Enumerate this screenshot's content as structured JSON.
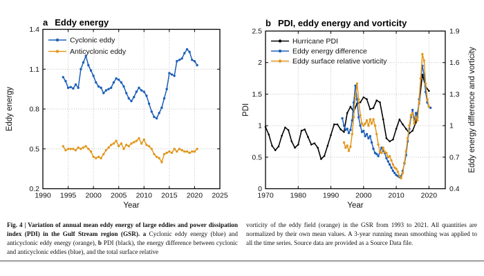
{
  "figure": {
    "caption": {
      "columns": [
        {
          "segments": [
            {
              "bold": true,
              "text": "Fig. 4 | Variation of annual mean eddy energy of large eddies and power dissipation index (PDI) in the Gulf Stream region (GSR). "
            },
            {
              "bold": true,
              "text": "a"
            },
            {
              "bold": false,
              "text": " Cyclonic eddy energy (blue) and anticyclonic eddy energy (orange), "
            },
            {
              "bold": true,
              "text": "b"
            },
            {
              "bold": false,
              "text": " PDI (black), the energy difference between cyclonic and anticyclonic eddies (blue), and the total surface relative"
            }
          ]
        },
        {
          "segments": [
            {
              "bold": false,
              "text": "vorticity of the eddy field (orange) in the GSR from 1993 to 2021. All quantities are normalized by their own mean values. A 3-year running mean smoothing was applied to all the time series. Source data are provided as a Source Data file."
            }
          ]
        }
      ]
    }
  },
  "chart_data": [
    {
      "panel": "a",
      "type": "line",
      "title": "Eddy energy",
      "xlabel": "Year",
      "ylabel": "Eddy energy",
      "xlim": [
        1990,
        2025
      ],
      "ylim": [
        0.2,
        1.4
      ],
      "xticks": [
        1990,
        1995,
        2000,
        2005,
        2010,
        2015,
        2020,
        2025
      ],
      "yticks": [
        0.2,
        0.5,
        0.8,
        1.1,
        1.4
      ],
      "grid": true,
      "legend_position": "top-left",
      "series": [
        {
          "name": "Cyclonic eddy",
          "color": "#1a5eb8",
          "x_start": 1994,
          "x_step": 0.5,
          "values": [
            1.04,
            1.01,
            0.96,
            0.965,
            0.955,
            0.985,
            0.96,
            1.1,
            1.15,
            1.2,
            1.13,
            1.09,
            1.05,
            1.0,
            0.97,
            0.96,
            0.92,
            0.94,
            0.95,
            0.96,
            1.0,
            1.03,
            1.02,
            1.0,
            0.97,
            0.92,
            0.88,
            0.86,
            0.89,
            0.93,
            0.96,
            0.94,
            0.93,
            0.9,
            0.84,
            0.78,
            0.74,
            0.73,
            0.77,
            0.81,
            0.88,
            0.95,
            1.07,
            1.06,
            1.05,
            1.16,
            1.17,
            1.18,
            1.22,
            1.25,
            1.23,
            1.17,
            1.16,
            1.13
          ]
        },
        {
          "name": "Anticyclonic eddy",
          "color": "#e2971d",
          "x_start": 1994,
          "x_step": 0.5,
          "values": [
            0.52,
            0.49,
            0.5,
            0.5,
            0.5,
            0.49,
            0.51,
            0.5,
            0.51,
            0.52,
            0.5,
            0.48,
            0.44,
            0.43,
            0.44,
            0.43,
            0.46,
            0.49,
            0.51,
            0.53,
            0.54,
            0.56,
            0.52,
            0.54,
            0.5,
            0.53,
            0.52,
            0.54,
            0.55,
            0.56,
            0.58,
            0.54,
            0.57,
            0.53,
            0.52,
            0.5,
            0.46,
            0.44,
            0.43,
            0.4,
            0.46,
            0.47,
            0.48,
            0.47,
            0.5,
            0.48,
            0.5,
            0.49,
            0.48,
            0.48,
            0.47,
            0.48,
            0.48,
            0.5
          ]
        }
      ]
    },
    {
      "panel": "b",
      "type": "line",
      "title": "PDI, eddy energy and vorticity",
      "xlabel": "Year",
      "ylabel_left": "PDI",
      "ylabel_right": "Eddy energy difference and vorticity",
      "xlim": [
        1970,
        2025
      ],
      "ylim_left": [
        0,
        2.5
      ],
      "ylim_right": [
        0.4,
        1.9
      ],
      "xticks": [
        1970,
        1980,
        1990,
        2000,
        2010,
        2020
      ],
      "yticks_left": [
        0,
        0.5,
        1,
        1.5,
        2,
        2.5
      ],
      "yticks_right": [
        0.4,
        0.7,
        1,
        1.3,
        1.6,
        1.9
      ],
      "grid": true,
      "legend_position": "top-left",
      "series": [
        {
          "name": "Hurricane PDI",
          "color": "#000000",
          "axis": "left",
          "x_start": 1970,
          "x_step": 1,
          "values": [
            0.98,
            0.86,
            0.68,
            0.61,
            0.67,
            0.84,
            0.97,
            0.93,
            0.75,
            0.65,
            0.7,
            0.92,
            0.94,
            0.82,
            0.7,
            0.72,
            0.65,
            0.47,
            0.52,
            0.68,
            0.85,
            1.02,
            1.02,
            0.94,
            0.9,
            1.2,
            1.3,
            1.22,
            1.35,
            1.37,
            1.45,
            1.42,
            1.26,
            1.28,
            1.4,
            1.37,
            1.1,
            0.8,
            0.75,
            0.78,
            0.95,
            1.1,
            1.02,
            0.95,
            0.88,
            0.92,
            1.05,
            1.35,
            1.81,
            1.62,
            1.55
          ]
        },
        {
          "name": "Eddy energy difference",
          "color": "#1a5eb8",
          "axis": "right",
          "x_start": 1993.5,
          "x_step": 0.5,
          "values": [
            1.07,
            1.0,
            0.96,
            0.97,
            0.93,
            0.96,
            1.05,
            1.22,
            1.38,
            1.25,
            1.08,
            1.0,
            0.94,
            0.95,
            0.9,
            0.92,
            0.88,
            0.9,
            0.84,
            0.78,
            0.74,
            0.73,
            0.71,
            0.75,
            0.79,
            0.76,
            0.74,
            0.69,
            0.66,
            0.63,
            0.6,
            0.57,
            0.55,
            0.53,
            0.52,
            0.51,
            0.52,
            0.57,
            0.64,
            0.72,
            0.85,
            0.97,
            1.08,
            1.15,
            1.05,
            1.12,
            1.08,
            1.25,
            1.45,
            1.57,
            1.48,
            1.32,
            1.22,
            1.18,
            1.17
          ]
        },
        {
          "name": "Eddy surface relative vorticity",
          "color": "#e2971d",
          "axis": "right",
          "x_start": 1994,
          "x_step": 0.5,
          "values": [
            0.84,
            0.79,
            0.81,
            0.76,
            0.8,
            0.92,
            1.08,
            1.28,
            1.4,
            1.25,
            1.1,
            1.02,
            1.0,
            1.02,
            1.05,
            1.0,
            1.06,
            1.02,
            1.06,
            1.0,
            0.92,
            0.82,
            0.75,
            0.74,
            0.79,
            0.75,
            0.74,
            0.7,
            0.71,
            0.67,
            0.63,
            0.6,
            0.59,
            0.56,
            0.52,
            0.5,
            0.55,
            0.65,
            0.76,
            0.88,
            1.0,
            1.1,
            1.12,
            1.02,
            1.08,
            1.05,
            1.22,
            1.45,
            1.68,
            1.62,
            1.4,
            1.25,
            1.18
          ]
        }
      ]
    }
  ],
  "style": {
    "grid_color": "#bbbbbb",
    "axis_color": "#000000",
    "text_color": "#111111"
  }
}
